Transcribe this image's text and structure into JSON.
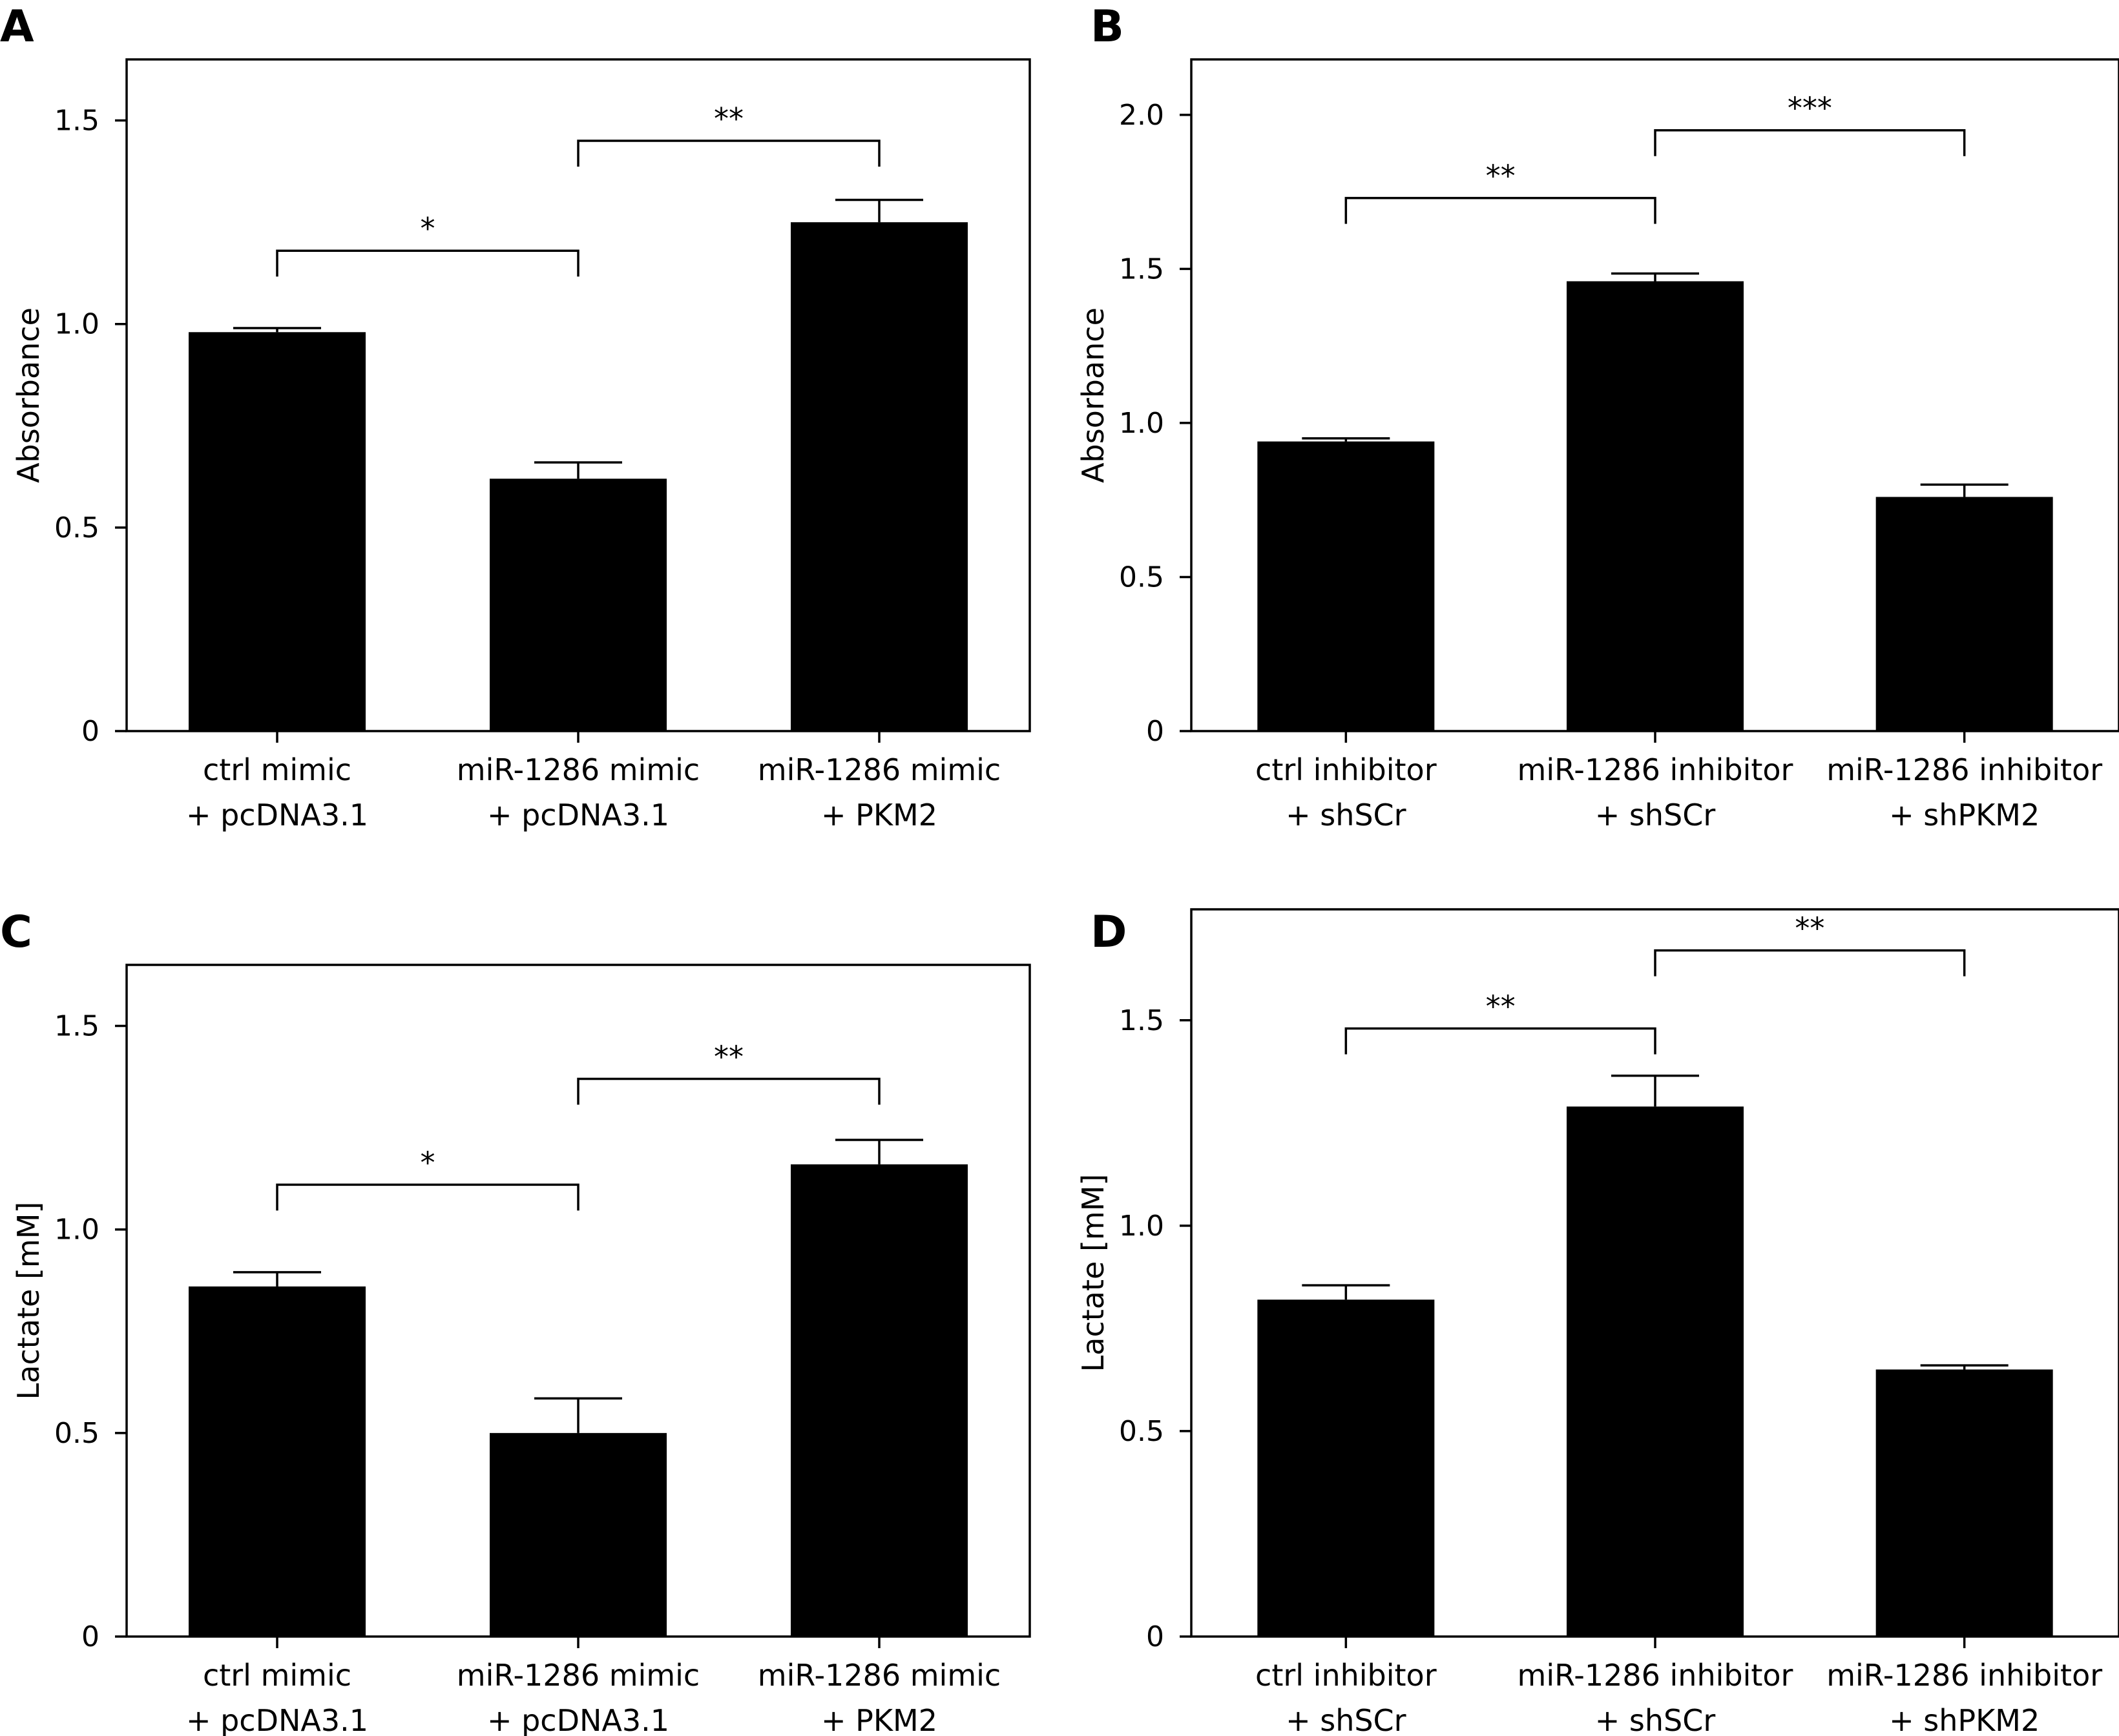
{
  "chart_data": [
    {
      "panel": "A",
      "type": "bar",
      "ylabel": "Absorbance",
      "ylim": [
        0,
        1.65
      ],
      "yticks": [
        {
          "value": 0,
          "label": "0"
        },
        {
          "value": 0.5,
          "label": "0.5"
        },
        {
          "value": 1.0,
          "label": "1.0"
        },
        {
          "value": 1.5,
          "label": "1.5"
        }
      ],
      "categories": [
        [
          "ctrl mimic",
          "+ pcDNA3.1"
        ],
        [
          "miR-1286 mimic",
          "+ pcDNA3.1"
        ],
        [
          "miR-1286 mimic",
          "+ PKM2"
        ]
      ],
      "values": [
        0.98,
        0.62,
        1.25
      ],
      "errors": [
        0.01,
        0.04,
        0.055
      ],
      "significance": [
        {
          "from": 0,
          "to": 1,
          "label": "*",
          "level": 1.18
        },
        {
          "from": 1,
          "to": 2,
          "label": "**",
          "level": 1.45
        }
      ],
      "bar_color": "#000000",
      "grid": false
    },
    {
      "panel": "B",
      "type": "bar",
      "ylabel": "Absorbance",
      "ylim": [
        0,
        2.18
      ],
      "yticks": [
        {
          "value": 0,
          "label": "0"
        },
        {
          "value": 0.5,
          "label": "0.5"
        },
        {
          "value": 1.0,
          "label": "1.0"
        },
        {
          "value": 1.5,
          "label": "1.5"
        },
        {
          "value": 2.0,
          "label": "2.0"
        }
      ],
      "categories": [
        [
          "ctrl inhibitor",
          "+ shSCr"
        ],
        [
          "miR-1286 inhibitor",
          "+ shSCr"
        ],
        [
          "miR-1286 inhibitor",
          "+ shPKM2"
        ]
      ],
      "values": [
        0.94,
        1.46,
        0.76
      ],
      "errors": [
        0.01,
        0.025,
        0.04
      ],
      "significance": [
        {
          "from": 0,
          "to": 1,
          "label": "**",
          "level": 1.73
        },
        {
          "from": 1,
          "to": 2,
          "label": "***",
          "level": 1.95
        }
      ],
      "bar_color": "#000000",
      "grid": false
    },
    {
      "panel": "C",
      "type": "bar",
      "ylabel": "Lactate [mM]",
      "ylim": [
        0,
        1.65
      ],
      "yticks": [
        {
          "value": 0,
          "label": "0"
        },
        {
          "value": 0.5,
          "label": "0.5"
        },
        {
          "value": 1.0,
          "label": "1.0"
        },
        {
          "value": 1.5,
          "label": "1.5"
        }
      ],
      "categories": [
        [
          "ctrl mimic",
          "+ pcDNA3.1"
        ],
        [
          "miR-1286 mimic",
          "+ pcDNA3.1"
        ],
        [
          "miR-1286 mimic",
          "+ PKM2"
        ]
      ],
      "values": [
        0.86,
        0.5,
        1.16
      ],
      "errors": [
        0.035,
        0.085,
        0.06
      ],
      "significance": [
        {
          "from": 0,
          "to": 1,
          "label": "*",
          "level": 1.11
        },
        {
          "from": 1,
          "to": 2,
          "label": "**",
          "level": 1.37
        }
      ],
      "bar_color": "#000000",
      "grid": false
    },
    {
      "panel": "D",
      "type": "bar",
      "ylabel": "Lactate [mM]",
      "ylim": [
        0,
        1.77
      ],
      "yticks": [
        {
          "value": 0,
          "label": "0"
        },
        {
          "value": 0.5,
          "label": "0.5"
        },
        {
          "value": 1.0,
          "label": "1.0"
        },
        {
          "value": 1.5,
          "label": "1.5"
        }
      ],
      "categories": [
        [
          "ctrl inhibitor",
          "+ shSCr"
        ],
        [
          "miR-1286 inhibitor",
          "+ shSCr"
        ],
        [
          "miR-1286 inhibitor",
          "+ shPKM2"
        ]
      ],
      "values": [
        0.82,
        1.29,
        0.65
      ],
      "errors": [
        0.035,
        0.075,
        0.01
      ],
      "significance": [
        {
          "from": 0,
          "to": 1,
          "label": "**",
          "level": 1.48
        },
        {
          "from": 1,
          "to": 2,
          "label": "**",
          "level": 1.67
        }
      ],
      "bar_color": "#000000",
      "grid": false
    }
  ]
}
